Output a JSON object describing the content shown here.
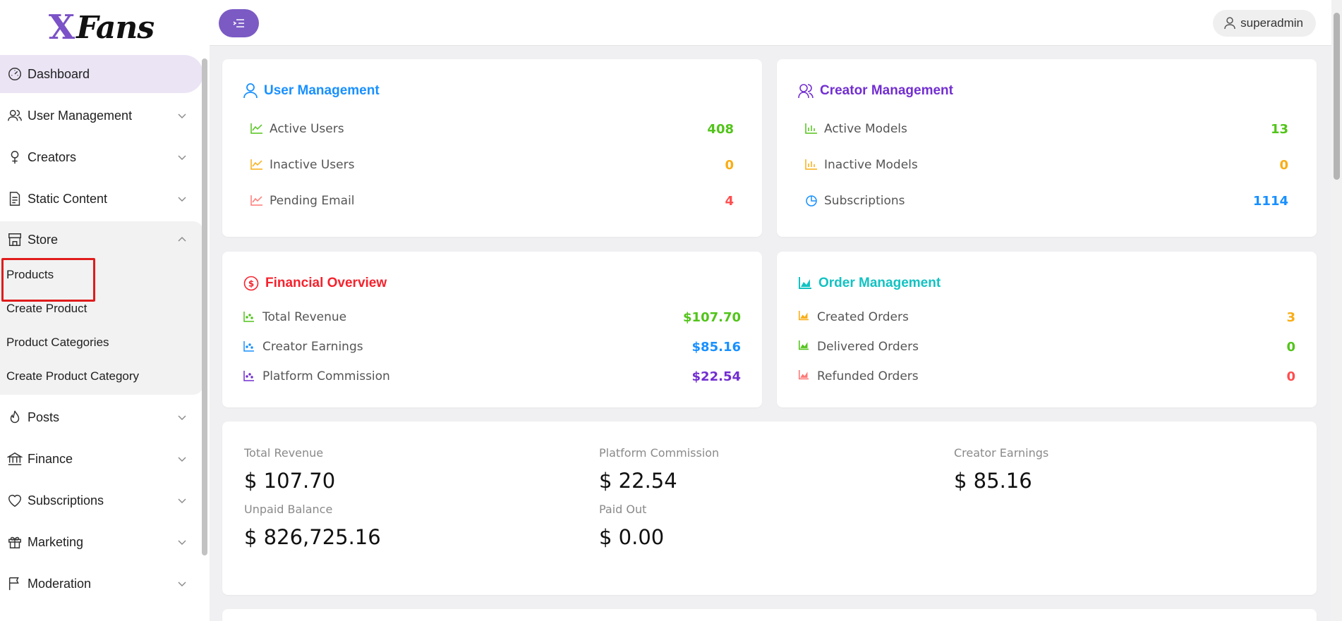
{
  "logo": {
    "mark": "X",
    "word": "Fans"
  },
  "sidebar": {
    "items": [
      {
        "label": "Dashboard"
      },
      {
        "label": "User Management"
      },
      {
        "label": "Creators"
      },
      {
        "label": "Static Content"
      },
      {
        "label": "Store"
      },
      {
        "label": "Posts"
      },
      {
        "label": "Finance"
      },
      {
        "label": "Subscriptions"
      },
      {
        "label": "Marketing"
      },
      {
        "label": "Moderation"
      }
    ],
    "store_sub": [
      {
        "label": "Products"
      },
      {
        "label": "Create Product"
      },
      {
        "label": "Product Categories"
      },
      {
        "label": "Create Product Category"
      }
    ]
  },
  "header": {
    "username": "superadmin"
  },
  "colors": {
    "purple": "#7b5ac4",
    "green": "#52c41a",
    "orange": "#faad14",
    "red": "#ff4d4f",
    "blue": "#1890ff",
    "violet": "#722ed1",
    "cyan": "#13c2c2",
    "fin_red": "#f5222d"
  },
  "user_mgmt": {
    "title": "User Management",
    "rows": [
      {
        "label": "Active Users",
        "value": "408"
      },
      {
        "label": "Inactive Users",
        "value": "0"
      },
      {
        "label": "Pending Email",
        "value": "4"
      }
    ]
  },
  "creator_mgmt": {
    "title": "Creator Management",
    "rows": [
      {
        "label": "Active Models",
        "value": "13"
      },
      {
        "label": "Inactive Models",
        "value": "0"
      },
      {
        "label": "Subscriptions",
        "value": "1114"
      }
    ]
  },
  "financial": {
    "title": "Financial Overview",
    "rows": [
      {
        "label": "Total Revenue",
        "value": "$107.70"
      },
      {
        "label": "Creator Earnings",
        "value": "$85.16"
      },
      {
        "label": "Platform Commission",
        "value": "$22.54"
      }
    ]
  },
  "orders": {
    "title": "Order Management",
    "rows": [
      {
        "label": "Created Orders",
        "value": "3"
      },
      {
        "label": "Delivered Orders",
        "value": "0"
      },
      {
        "label": "Refunded Orders",
        "value": "0"
      }
    ]
  },
  "summary": {
    "total_revenue": {
      "label": "Total Revenue",
      "value": "$ 107.70"
    },
    "platform_commission": {
      "label": "Platform Commission",
      "value": "$ 22.54"
    },
    "creator_earnings": {
      "label": "Creator Earnings",
      "value": "$ 85.16"
    },
    "unpaid_balance": {
      "label": "Unpaid Balance",
      "value": "$ 826,725.16"
    },
    "paid_out": {
      "label": "Paid Out",
      "value": "$ 0.00"
    }
  }
}
